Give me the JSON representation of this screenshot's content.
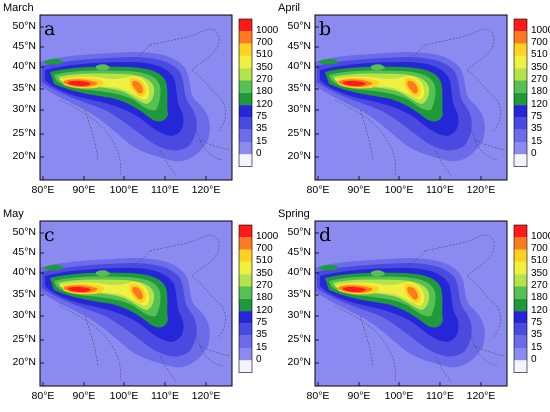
{
  "colorbar": {
    "levels": [
      "1000",
      "700",
      "510",
      "350",
      "270",
      "180",
      "120",
      "75",
      "35",
      "15",
      "0"
    ],
    "colors": [
      "#ff1a1a",
      "#ff7a1f",
      "#ffd21f",
      "#f0f040",
      "#b6e34a",
      "#56c152",
      "#1e9a3a",
      "#2626d9",
      "#4a4ae0",
      "#6c6cea",
      "#8a8af0",
      "#f4f4ff"
    ]
  },
  "axes": {
    "lat_labels": [
      "50°N",
      "45°N",
      "40°N",
      "35°N",
      "30°N",
      "25°N",
      "20°N"
    ],
    "lon_labels": [
      "80°E",
      "90°E",
      "100°E",
      "110°E",
      "120°E"
    ]
  },
  "panels": [
    {
      "title": "March",
      "letter": "a"
    },
    {
      "title": "April",
      "letter": "b"
    },
    {
      "title": "May",
      "letter": "c"
    },
    {
      "title": "Spring",
      "letter": "d"
    }
  ]
}
